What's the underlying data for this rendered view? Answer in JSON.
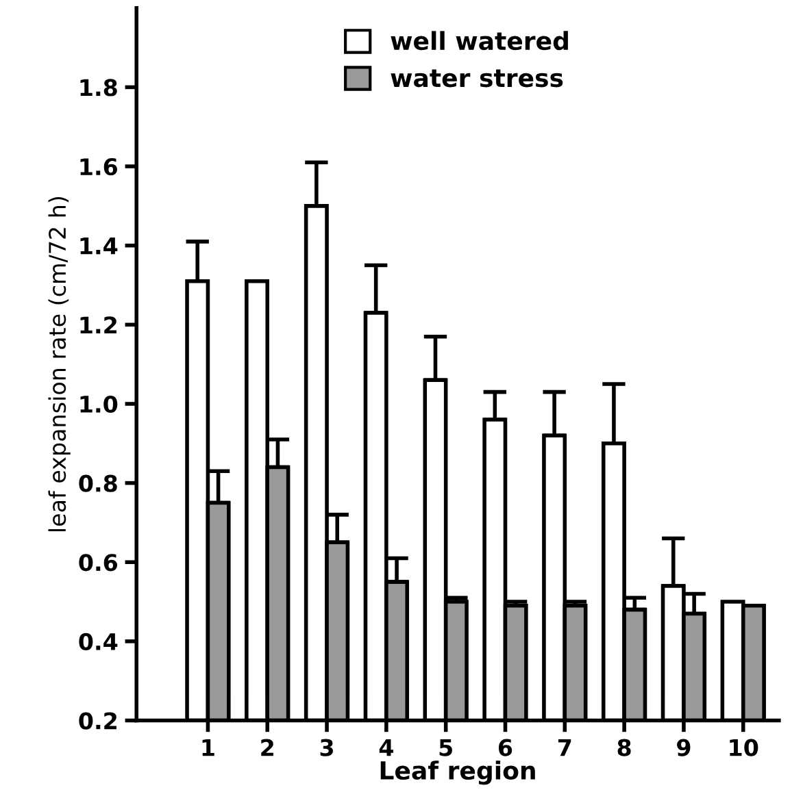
{
  "chart_data": {
    "type": "bar",
    "xlabel": "Leaf region",
    "ylabel": "leaf expansion rate (cm/72 h)",
    "categories": [
      "1",
      "2",
      "3",
      "4",
      "5",
      "6",
      "7",
      "8",
      "9",
      "10"
    ],
    "series": [
      {
        "name": "well watered",
        "color": "#ffffff",
        "values": [
          1.31,
          1.31,
          1.5,
          1.23,
          1.06,
          0.96,
          0.92,
          0.9,
          0.54,
          0.5
        ],
        "errors": [
          [
            1.31,
            1.41
          ],
          null,
          [
            1.5,
            1.61
          ],
          [
            1.23,
            1.35
          ],
          [
            1.06,
            1.17
          ],
          [
            0.96,
            1.03
          ],
          [
            0.92,
            1.03
          ],
          [
            0.9,
            1.05
          ],
          [
            0.54,
            0.66
          ],
          null
        ]
      },
      {
        "name": "water stress",
        "color": "#999999",
        "values": [
          0.75,
          0.84,
          0.65,
          0.55,
          0.5,
          0.49,
          0.49,
          0.48,
          0.47,
          0.49
        ],
        "errors": [
          [
            0.75,
            0.83
          ],
          [
            0.84,
            0.91
          ],
          [
            0.65,
            0.72
          ],
          [
            0.55,
            0.61
          ],
          [
            0.5,
            0.51
          ],
          [
            0.49,
            0.5
          ],
          [
            0.49,
            0.5
          ],
          [
            0.48,
            0.51
          ],
          [
            0.47,
            0.52
          ],
          null
        ]
      }
    ],
    "ylim": [
      0.2,
      2.0
    ],
    "yticks": [
      0.2,
      0.4,
      0.6,
      0.8,
      {
        "value": 1,
        "label": "1.0"
      },
      1.2,
      1.4,
      1.6,
      1.8
    ],
    "grid": false,
    "legend": "top"
  }
}
